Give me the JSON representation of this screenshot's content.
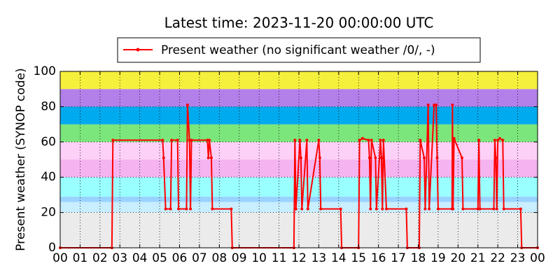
{
  "chart_data": {
    "type": "line",
    "title": "Latest time: 2023-11-20 00:00:00 UTC",
    "y_label": "Present weather (SYNOP code)",
    "x": [
      0,
      2.6,
      2.65,
      5.15,
      5.2,
      5.3,
      5.55,
      5.6,
      5.9,
      5.95,
      6.35,
      6.4,
      6.5,
      6.55,
      6.6,
      7.4,
      7.45,
      7.5,
      7.6,
      7.65,
      8.6,
      8.65,
      11.75,
      11.8,
      11.85,
      12.05,
      12.1,
      12.15,
      12.4,
      12.45,
      13.0,
      13.05,
      13.1,
      14.1,
      14.15,
      15.0,
      15.05,
      15.2,
      15.5,
      15.55,
      15.6,
      15.65,
      15.85,
      15.9,
      16.1,
      16.15,
      16.2,
      16.25,
      16.4,
      17.4,
      17.45,
      18.05,
      18.1,
      18.3,
      18.35,
      18.5,
      18.55,
      18.8,
      18.9,
      18.95,
      19.0,
      19.7,
      19.72,
      19.75,
      19.8,
      20.2,
      20.25,
      21.0,
      21.05,
      21.1,
      21.8,
      21.85,
      21.9,
      21.95,
      22.0,
      22.1,
      22.25,
      22.3,
      23.15,
      23.2,
      24.0
    ],
    "series": [
      {
        "name": "Present weather (no significant weather /0/, -)",
        "color": "#ff0000",
        "values": [
          0,
          0,
          61,
          61,
          51,
          22,
          22,
          61,
          61,
          22,
          22,
          81,
          61,
          22,
          61,
          61,
          51,
          61,
          51,
          22,
          22,
          0,
          0,
          61,
          22,
          61,
          51,
          22,
          61,
          22,
          61,
          51,
          22,
          22,
          0,
          0,
          61,
          62,
          61,
          51,
          22,
          61,
          51,
          22,
          61,
          51,
          22,
          61,
          22,
          22,
          0,
          0,
          61,
          51,
          22,
          81,
          22,
          81,
          81,
          51,
          22,
          22,
          81,
          22,
          62,
          51,
          22,
          22,
          61,
          22,
          22,
          61,
          51,
          22,
          61,
          62,
          61,
          22,
          22,
          0,
          0
        ]
      }
    ],
    "xlim": [
      0,
      24
    ],
    "xticks": [
      {
        "value": 0,
        "label": "00"
      },
      {
        "value": 1,
        "label": "01"
      },
      {
        "value": 2,
        "label": "02"
      },
      {
        "value": 3,
        "label": "03"
      },
      {
        "value": 4,
        "label": "04"
      },
      {
        "value": 5,
        "label": "05"
      },
      {
        "value": 6,
        "label": "06"
      },
      {
        "value": 7,
        "label": "07"
      },
      {
        "value": 8,
        "label": "08"
      },
      {
        "value": 9,
        "label": "09"
      },
      {
        "value": 10,
        "label": "10"
      },
      {
        "value": 11,
        "label": "11"
      },
      {
        "value": 12,
        "label": "12"
      },
      {
        "value": 13,
        "label": "13"
      },
      {
        "value": 14,
        "label": "14"
      },
      {
        "value": 15,
        "label": "15"
      },
      {
        "value": 16,
        "label": "16"
      },
      {
        "value": 17,
        "label": "17"
      },
      {
        "value": 18,
        "label": "18"
      },
      {
        "value": 19,
        "label": "19"
      },
      {
        "value": 20,
        "label": "20"
      },
      {
        "value": 21,
        "label": "21"
      },
      {
        "value": 22,
        "label": "22"
      },
      {
        "value": 23,
        "label": "23"
      },
      {
        "value": 24,
        "label": "00"
      }
    ],
    "ylim": [
      0,
      100
    ],
    "yticks": [
      0,
      20,
      40,
      60,
      80,
      100
    ],
    "grid": true,
    "legend": "top-center",
    "bands": [
      {
        "from": 0,
        "to": 20,
        "color": "#ebebeb"
      },
      {
        "from": 20,
        "to": 26,
        "color": "#c8eeff"
      },
      {
        "from": 26,
        "to": 29,
        "color": "#99d3ff"
      },
      {
        "from": 29,
        "to": 40,
        "color": "#99ffff"
      },
      {
        "from": 40,
        "to": 50,
        "color": "#f5b3f0"
      },
      {
        "from": 50,
        "to": 60,
        "color": "#fdd0f8"
      },
      {
        "from": 60,
        "to": 70,
        "color": "#7be67b"
      },
      {
        "from": 70,
        "to": 80,
        "color": "#00aaee"
      },
      {
        "from": 80,
        "to": 90,
        "color": "#b380ea"
      },
      {
        "from": 90,
        "to": 100,
        "color": "#f5f03c"
      }
    ]
  }
}
